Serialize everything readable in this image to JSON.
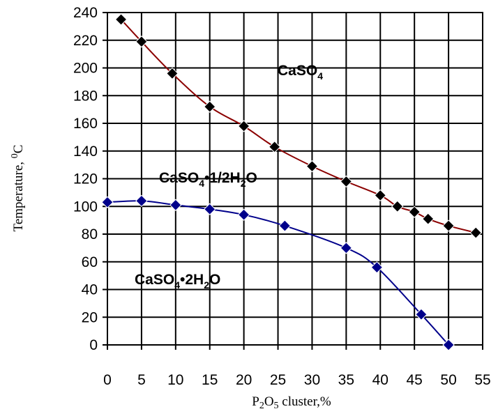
{
  "chart_data": {
    "type": "line",
    "xlabel": "P2O5 cluster,%",
    "ylabel": "Temperature, 0C",
    "xlim": [
      0,
      55
    ],
    "ylim": [
      0,
      240
    ],
    "x_ticks": [
      "0",
      "5",
      "10",
      "15",
      "20",
      "25",
      "30",
      "35",
      "40",
      "45",
      "50",
      "55"
    ],
    "y_ticks": [
      "0",
      "20",
      "40",
      "60",
      "80",
      "100",
      "120",
      "140",
      "160",
      "180",
      "200",
      "220",
      "240"
    ],
    "grid": true,
    "region_labels": [
      "CaSO4",
      "CaSO4•1/2H2O",
      "CaSO4•2H2O"
    ],
    "series": [
      {
        "color": "#8B0000",
        "marker": "diamond-black",
        "points": [
          [
            2,
            235
          ],
          [
            5,
            219
          ],
          [
            9.5,
            196
          ],
          [
            15,
            172
          ],
          [
            20,
            158
          ],
          [
            24.5,
            143
          ],
          [
            30,
            129
          ],
          [
            35,
            118
          ],
          [
            40,
            108
          ],
          [
            42.5,
            100
          ],
          [
            45,
            96
          ],
          [
            47,
            91
          ],
          [
            50,
            86
          ],
          [
            54,
            81
          ]
        ]
      },
      {
        "color": "#00008B",
        "marker": "diamond-blue",
        "points": [
          [
            0,
            103
          ],
          [
            5,
            104
          ],
          [
            10,
            101
          ],
          [
            15,
            98
          ],
          [
            20,
            94
          ],
          [
            26,
            86
          ],
          [
            35,
            70
          ],
          [
            39.5,
            56
          ],
          [
            46,
            22
          ],
          [
            50,
            0
          ]
        ]
      }
    ]
  }
}
